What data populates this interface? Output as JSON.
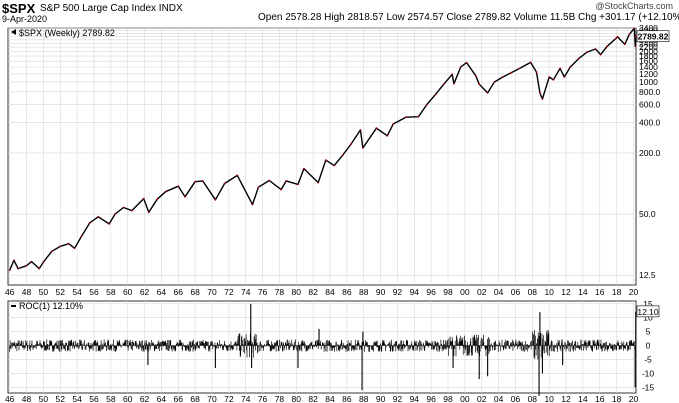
{
  "header": {
    "symbol": "$SPX",
    "name": "S&P 500 Large Cap Index",
    "exchange": "INDX",
    "date": "9-Apr-2020",
    "ohlc": "Open 2578.28  High 2818.57  Low 2574.57  Close 2789.82  Volume 11.5B  Chg +301.17 (+12.10%)",
    "watermark": "@StockCharts.com",
    "legend_main": "$SPX (Weekly) 2789.82",
    "legend_roc": "ROC(1) 12.10%",
    "last_price_tag": "2789.82",
    "last_roc_tag": "12.10"
  },
  "chart_data": [
    {
      "type": "line",
      "title": "$SPX (Weekly) 2789.82",
      "yscale": "log",
      "ylim": [
        10,
        3400
      ],
      "x_ticks": [
        "46",
        "48",
        "50",
        "52",
        "54",
        "56",
        "58",
        "60",
        "62",
        "64",
        "66",
        "68",
        "70",
        "72",
        "74",
        "76",
        "78",
        "80",
        "82",
        "84",
        "86",
        "88",
        "90",
        "92",
        "94",
        "96",
        "98",
        "00",
        "02",
        "04",
        "06",
        "08",
        "10",
        "12",
        "14",
        "16",
        "18",
        "20"
      ],
      "y_ticks": [
        "3400",
        "3200",
        "3000",
        "2800",
        "2600",
        "2400",
        "2200",
        "2000",
        "1800",
        "1600",
        "1400",
        "1200",
        "1000",
        "800.0",
        "600.0",
        "400.0",
        "200.0",
        "50.0",
        "12.5"
      ],
      "series": [
        {
          "name": "$SPX (Weekly)",
          "points": [
            [
              1946.0,
              14.0
            ],
            [
              1946.5,
              17.5
            ],
            [
              1947.0,
              14.5
            ],
            [
              1948.0,
              15.5
            ],
            [
              1948.6,
              17.0
            ],
            [
              1949.5,
              14.5
            ],
            [
              1950.0,
              16.8
            ],
            [
              1951.0,
              21.5
            ],
            [
              1952.0,
              24.0
            ],
            [
              1953.0,
              25.5
            ],
            [
              1953.7,
              23.0
            ],
            [
              1954.5,
              30.0
            ],
            [
              1955.5,
              41.0
            ],
            [
              1956.5,
              47.0
            ],
            [
              1957.8,
              40.0
            ],
            [
              1958.5,
              50.0
            ],
            [
              1959.5,
              58.0
            ],
            [
              1960.5,
              54.0
            ],
            [
              1961.9,
              71.0
            ],
            [
              1962.5,
              52.0
            ],
            [
              1963.5,
              70.0
            ],
            [
              1964.5,
              83.0
            ],
            [
              1966.0,
              94.0
            ],
            [
              1966.8,
              74.0
            ],
            [
              1968.0,
              104.0
            ],
            [
              1968.9,
              106.0
            ],
            [
              1970.4,
              69.0
            ],
            [
              1971.5,
              100.0
            ],
            [
              1973.0,
              120.0
            ],
            [
              1974.8,
              62.0
            ],
            [
              1975.5,
              92.0
            ],
            [
              1976.8,
              107.0
            ],
            [
              1978.2,
              87.0
            ],
            [
              1978.8,
              106.0
            ],
            [
              1980.2,
              98.0
            ],
            [
              1980.9,
              140.0
            ],
            [
              1982.6,
              102.0
            ],
            [
              1983.5,
              170.0
            ],
            [
              1984.5,
              150.0
            ],
            [
              1985.5,
              190.0
            ],
            [
              1986.5,
              245.0
            ],
            [
              1987.6,
              336.0
            ],
            [
              1987.9,
              224.0
            ],
            [
              1989.5,
              350.0
            ],
            [
              1990.8,
              295.0
            ],
            [
              1991.5,
              385.0
            ],
            [
              1993.0,
              450.0
            ],
            [
              1994.5,
              455.0
            ],
            [
              1995.5,
              600.0
            ],
            [
              1996.5,
              750.0
            ],
            [
              1997.5,
              950.0
            ],
            [
              1998.5,
              1190.0
            ],
            [
              1998.7,
              960.0
            ],
            [
              1999.5,
              1400.0
            ],
            [
              2000.2,
              1550.0
            ],
            [
              2001.3,
              1150.0
            ],
            [
              2001.7,
              950.0
            ],
            [
              2002.7,
              780.0
            ],
            [
              2003.5,
              1000.0
            ],
            [
              2004.5,
              1120.0
            ],
            [
              2005.5,
              1230.0
            ],
            [
              2006.5,
              1360.0
            ],
            [
              2007.8,
              1560.0
            ],
            [
              2008.5,
              1250.0
            ],
            [
              2008.9,
              780.0
            ],
            [
              2009.2,
              680.0
            ],
            [
              2010.0,
              1120.0
            ],
            [
              2010.5,
              1050.0
            ],
            [
              2011.3,
              1360.0
            ],
            [
              2011.8,
              1120.0
            ],
            [
              2012.5,
              1400.0
            ],
            [
              2013.5,
              1700.0
            ],
            [
              2014.5,
              1970.0
            ],
            [
              2015.5,
              2110.0
            ],
            [
              2016.1,
              1860.0
            ],
            [
              2016.9,
              2250.0
            ],
            [
              2017.9,
              2680.0
            ],
            [
              2018.1,
              2780.0
            ],
            [
              2018.97,
              2350.0
            ],
            [
              2019.5,
              2950.0
            ],
            [
              2020.1,
              3380.0
            ],
            [
              2020.22,
              2240.0
            ],
            [
              2020.27,
              2789.82
            ]
          ]
        }
      ]
    },
    {
      "type": "line",
      "title": "ROC(1) 12.10%",
      "ylim": [
        -17,
        16
      ],
      "y_ticks": [
        "15",
        "10",
        "5",
        "0",
        "-5",
        "-10",
        "-15"
      ],
      "x_ticks": [
        "46",
        "48",
        "50",
        "52",
        "54",
        "56",
        "58",
        "60",
        "62",
        "64",
        "66",
        "68",
        "70",
        "72",
        "74",
        "76",
        "78",
        "80",
        "82",
        "84",
        "86",
        "88",
        "90",
        "92",
        "94",
        "96",
        "98",
        "00",
        "02",
        "04",
        "06",
        "08",
        "10",
        "12",
        "14",
        "16",
        "18",
        "20"
      ],
      "series": [
        {
          "name": "ROC(1)",
          "spikes": [
            [
              1974.6,
              15.0
            ],
            [
              1974.7,
              -8.0
            ],
            [
              1987.8,
              -16.0
            ],
            [
              1987.9,
              5.0
            ],
            [
              1962.4,
              -7.0
            ],
            [
              1970.4,
              -8.0
            ],
            [
              1980.2,
              -8.0
            ],
            [
              1982.7,
              6.0
            ],
            [
              1998.6,
              -8.0
            ],
            [
              2001.7,
              -12.0
            ],
            [
              2002.7,
              -11.0
            ],
            [
              2008.8,
              -18.0
            ],
            [
              2008.9,
              12.0
            ],
            [
              2009.2,
              -10.0
            ],
            [
              2011.6,
              -7.0
            ],
            [
              2020.2,
              -15.0
            ],
            [
              2020.27,
              12.1
            ]
          ]
        }
      ]
    }
  ]
}
